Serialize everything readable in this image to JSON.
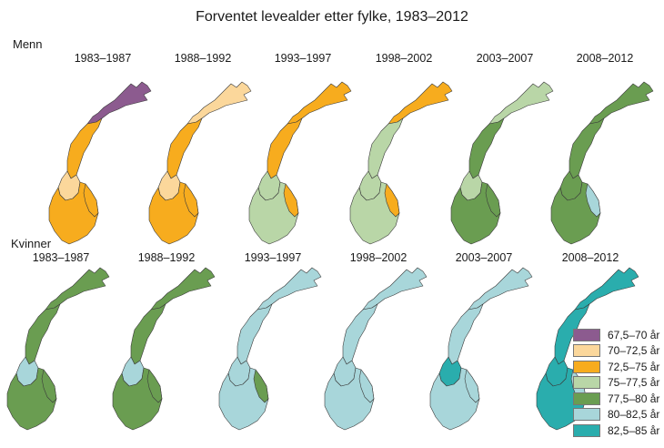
{
  "title": "Forventet levealder etter fylke, 1983–2012",
  "sections": [
    {
      "label": "Menn",
      "panels": [
        {
          "period": "1983–1987",
          "north": "67,5–70 år",
          "middle": "72,5–75 år",
          "coast": "70–72,5 år",
          "south": "72,5–75 år",
          "oslo": "72,5–75 år"
        },
        {
          "period": "1988–1992",
          "north": "70–72,5 år",
          "middle": "72,5–75 år",
          "coast": "70–72,5 år",
          "south": "72,5–75 år",
          "oslo": "72,5–75 år"
        },
        {
          "period": "1993–1997",
          "north": "72,5–75 år",
          "middle": "72,5–75 år",
          "coast": "75–77,5 år",
          "south": "75–77,5 år",
          "oslo": "72,5–75 år"
        },
        {
          "period": "1998–2002",
          "north": "72,5–75 år",
          "middle": "75–77,5 år",
          "coast": "75–77,5 år",
          "south": "75–77,5 år",
          "oslo": "72,5–75 år"
        },
        {
          "period": "2003–2007",
          "north": "75–77,5 år",
          "middle": "77,5–80 år",
          "coast": "75–77,5 år",
          "south": "77,5–80 år",
          "oslo": "77,5–80 år"
        },
        {
          "period": "2008–2012",
          "north": "77,5–80 år",
          "middle": "77,5–80 år",
          "coast": "77,5–80 år",
          "south": "77,5–80 år",
          "oslo": "80–82,5 år"
        }
      ]
    },
    {
      "label": "Kvinner",
      "panels": [
        {
          "period": "1983–1987",
          "north": "77,5–80 år",
          "middle": "77,5–80 år",
          "coast": "80–82,5 år",
          "south": "77,5–80 år",
          "oslo": "77,5–80 år"
        },
        {
          "period": "1988–1992",
          "north": "77,5–80 år",
          "middle": "77,5–80 år",
          "coast": "80–82,5 år",
          "south": "77,5–80 år",
          "oslo": "77,5–80 år"
        },
        {
          "period": "1993–1997",
          "north": "80–82,5 år",
          "middle": "80–82,5 år",
          "coast": "80–82,5 år",
          "south": "80–82,5 år",
          "oslo": "77,5–80 år"
        },
        {
          "period": "1998–2002",
          "north": "80–82,5 år",
          "middle": "80–82,5 år",
          "coast": "80–82,5 år",
          "south": "80–82,5 år",
          "oslo": "80–82,5 år"
        },
        {
          "period": "2003–2007",
          "north": "80–82,5 år",
          "middle": "80–82,5 år",
          "coast": "82,5–85 år",
          "south": "80–82,5 år",
          "oslo": "80–82,5 år"
        },
        {
          "period": "2008–2012",
          "north": "82,5–85 år",
          "middle": "82,5–85 år",
          "coast": "82,5–85 år",
          "south": "82,5–85 år",
          "oslo": "80–82,5 år"
        }
      ]
    }
  ],
  "legend": [
    {
      "label": "67,5–70 år",
      "color": "#8c5b8f"
    },
    {
      "label": "70–72,5 år",
      "color": "#fbd79b"
    },
    {
      "label": "72,5–75 år",
      "color": "#f7ac1e"
    },
    {
      "label": "75–77,5 år",
      "color": "#b9d6a7"
    },
    {
      "label": "77,5–80 år",
      "color": "#6a9d51"
    },
    {
      "label": "80–82,5 år",
      "color": "#a8d6da"
    },
    {
      "label": "82,5–85 år",
      "color": "#2aadad"
    }
  ]
}
